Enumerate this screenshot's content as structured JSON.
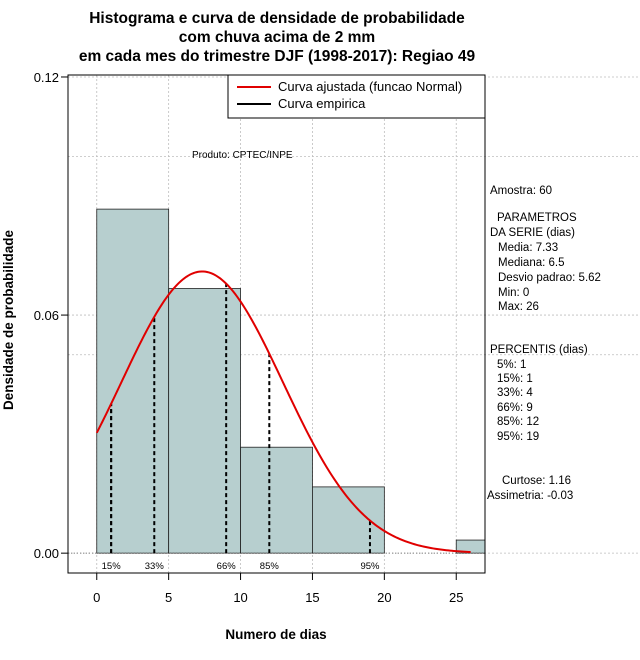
{
  "chart_data": {
    "type": "histogram",
    "title": [
      "Histograma e curva de densidade de probabilidade",
      "com chuva acima de 2 mm",
      "em cada mes do trimestre DJF (1998-2017): Regiao 49"
    ],
    "xlabel": "Numero de dias",
    "ylabel": "Densidade de probabilidade",
    "xlim": [
      -2,
      27
    ],
    "ylim": [
      -0.005,
      0.1205
    ],
    "xticks": [
      0,
      5,
      10,
      15,
      20,
      25
    ],
    "yticks": [
      0.0,
      0.06,
      0.12
    ],
    "ytick_labels": [
      "0.00",
      "0.06",
      "0.12"
    ],
    "bins": [
      {
        "x0": 0,
        "x1": 5,
        "density": 0.0867
      },
      {
        "x0": 5,
        "x1": 10,
        "density": 0.0667
      },
      {
        "x0": 10,
        "x1": 15,
        "density": 0.0267
      },
      {
        "x0": 15,
        "x1": 20,
        "density": 0.0167
      },
      {
        "x0": 25,
        "x1": 30,
        "density": 0.0033
      }
    ],
    "fitted_curve": {
      "name": "Curva ajustada (funcao Normal)",
      "mean": 7.33,
      "sd": 5.62,
      "x_range": [
        0,
        26
      ],
      "color": "#e00000"
    },
    "empirical_curve": {
      "name": "Curva empirica",
      "color": "#000000"
    },
    "percentile_lines": [
      {
        "label": "5%",
        "x": 1
      },
      {
        "label": "15%",
        "x": 1
      },
      {
        "label": "33%",
        "x": 4
      },
      {
        "label": "66%",
        "x": 9
      },
      {
        "label": "85%",
        "x": 12
      },
      {
        "label": "95%",
        "x": 19
      }
    ],
    "percentile_label_text": [
      "15%",
      "33%",
      "66%",
      "85%",
      "95%"
    ],
    "grid_y": [
      0.1,
      0.05
    ],
    "legend_position": "top-right",
    "annotation": "Produto: CPTEC/INPE",
    "bar_color": "#b7cfcf"
  },
  "stats_panel": [
    "Amostra: 60",
    "PARAMETROS",
    "DA SERIE (dias)",
    "Media: 7.33",
    "Mediana: 6.5",
    "Desvio padrao: 5.62",
    "Min: 0",
    "Max: 26",
    "PERCENTIS (dias)",
    "5%: 1",
    "15%: 1",
    "33%: 4",
    "66%: 9",
    "85%: 12",
    "95%: 19",
    "Curtose: 1.16",
    "Assimetria: -0.03"
  ]
}
